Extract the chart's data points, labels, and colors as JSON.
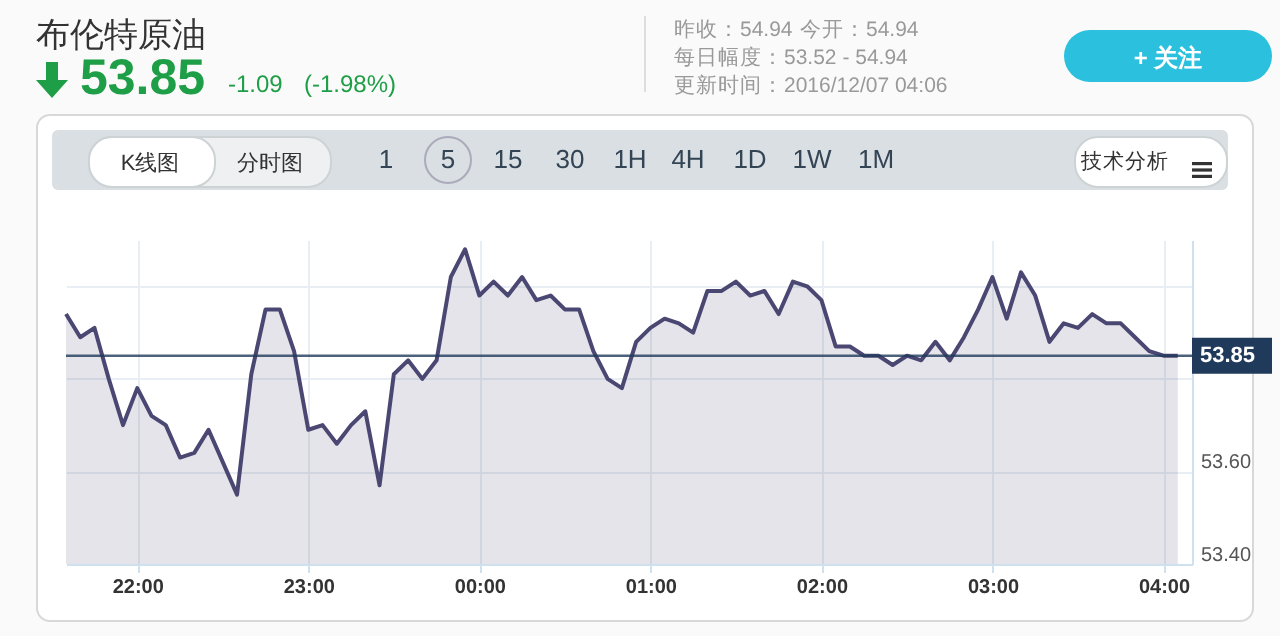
{
  "chart_data": {
    "type": "area",
    "title": "布伦特原油",
    "annotations": [
      "53.85",
      "-1.09",
      "(-1.98%)",
      "昨收：54.94",
      "今开：54.94",
      "每日幅度：53.52 - 54.94",
      "更新时间：2016/12/07 04:06",
      "+ 关注",
      "K线图",
      "分时图",
      "1",
      "5",
      "15",
      "30",
      "1H",
      "4H",
      "1D",
      "1W",
      "1M",
      "技术分析"
    ],
    "x": [
      "2016-12-06T21:35",
      "2016-12-06T21:40",
      "2016-12-06T21:45",
      "2016-12-06T21:50",
      "2016-12-06T21:55",
      "2016-12-06T22:00",
      "2016-12-06T22:05",
      "2016-12-06T22:10",
      "2016-12-06T22:15",
      "2016-12-06T22:20",
      "2016-12-06T22:25",
      "2016-12-06T22:30",
      "2016-12-06T22:35",
      "2016-12-06T22:40",
      "2016-12-06T22:45",
      "2016-12-06T22:50",
      "2016-12-06T22:55",
      "2016-12-06T23:00",
      "2016-12-06T23:05",
      "2016-12-06T23:10",
      "2016-12-06T23:15",
      "2016-12-06T23:20",
      "2016-12-06T23:25",
      "2016-12-06T23:30",
      "2016-12-06T23:35",
      "2016-12-06T23:40",
      "2016-12-06T23:45",
      "2016-12-06T23:50",
      "2016-12-06T23:55",
      "2016-12-07T00:00",
      "2016-12-07T00:05",
      "2016-12-07T00:10",
      "2016-12-07T00:15",
      "2016-12-07T00:20",
      "2016-12-07T00:25",
      "2016-12-07T00:30",
      "2016-12-07T00:35",
      "2016-12-07T00:40",
      "2016-12-07T00:45",
      "2016-12-07T00:50",
      "2016-12-07T00:55",
      "2016-12-07T01:00",
      "2016-12-07T01:05",
      "2016-12-07T01:10",
      "2016-12-07T01:15",
      "2016-12-07T01:20",
      "2016-12-07T01:25",
      "2016-12-07T01:30",
      "2016-12-07T01:35",
      "2016-12-07T01:40",
      "2016-12-07T01:45",
      "2016-12-07T01:50",
      "2016-12-07T01:55",
      "2016-12-07T02:00",
      "2016-12-07T02:05",
      "2016-12-07T02:10",
      "2016-12-07T02:15",
      "2016-12-07T02:20",
      "2016-12-07T02:25",
      "2016-12-07T02:30",
      "2016-12-07T02:35",
      "2016-12-07T02:40",
      "2016-12-07T02:45",
      "2016-12-07T02:50",
      "2016-12-07T02:55",
      "2016-12-07T03:00",
      "2016-12-07T03:05",
      "2016-12-07T03:10",
      "2016-12-07T03:15",
      "2016-12-07T03:20",
      "2016-12-07T03:25",
      "2016-12-07T03:30",
      "2016-12-07T03:35",
      "2016-12-07T03:40",
      "2016-12-07T03:45",
      "2016-12-07T03:50",
      "2016-12-07T03:55",
      "2016-12-07T04:00",
      "2016-12-07T04:05"
    ],
    "series": [
      {
        "color": "#4a4872",
        "values": [
          53.94,
          53.89,
          53.91,
          53.8,
          53.7,
          53.78,
          53.72,
          53.7,
          53.63,
          53.64,
          53.69,
          53.62,
          53.55,
          53.81,
          53.95,
          53.95,
          53.86,
          53.69,
          53.7,
          53.66,
          53.7,
          53.73,
          53.57,
          53.81,
          53.84,
          53.8,
          53.84,
          54.02,
          54.08,
          53.98,
          54.01,
          53.98,
          54.02,
          53.97,
          53.98,
          53.95,
          53.95,
          53.86,
          53.8,
          53.78,
          53.88,
          53.91,
          53.93,
          53.92,
          53.9,
          53.99,
          53.99,
          54.01,
          53.98,
          53.99,
          53.94,
          54.01,
          54.0,
          53.97,
          53.87,
          53.87,
          53.85,
          53.85,
          53.83,
          53.85,
          53.84,
          53.88,
          53.84,
          53.89,
          53.95,
          54.02,
          53.93,
          54.03,
          53.98,
          53.88,
          53.92,
          53.91,
          53.94,
          53.92,
          53.92,
          53.89,
          53.86,
          53.85,
          53.85
        ]
      }
    ],
    "xlim": [
      "2016-12-06T21:35",
      "2016-12-07T04:10"
    ],
    "xticks": [
      {
        "value": "2016-12-06T22:00",
        "label": "22:00"
      },
      {
        "value": "2016-12-06T23:00",
        "label": "23:00"
      },
      {
        "value": "2016-12-07T00:00",
        "label": "00:00"
      },
      {
        "value": "2016-12-07T01:00",
        "label": "01:00"
      },
      {
        "value": "2016-12-07T02:00",
        "label": "02:00"
      },
      {
        "value": "2016-12-07T03:00",
        "label": "03:00"
      },
      {
        "value": "2016-12-07T04:00",
        "label": "04:00"
      }
    ],
    "ylim": [
      53.4,
      54.1
    ],
    "yticks": [
      {
        "value": 53.4,
        "label": "53.40"
      },
      {
        "value": 53.6,
        "label": "53.60"
      },
      {
        "value": 53.8,
        "label": null
      },
      {
        "value": 54.0,
        "label": null
      }
    ],
    "ref_lines": [
      {
        "axis": "y",
        "value": 53.85,
        "label": "53.85",
        "color": "#1f3a5a"
      }
    ],
    "grid": true
  }
}
